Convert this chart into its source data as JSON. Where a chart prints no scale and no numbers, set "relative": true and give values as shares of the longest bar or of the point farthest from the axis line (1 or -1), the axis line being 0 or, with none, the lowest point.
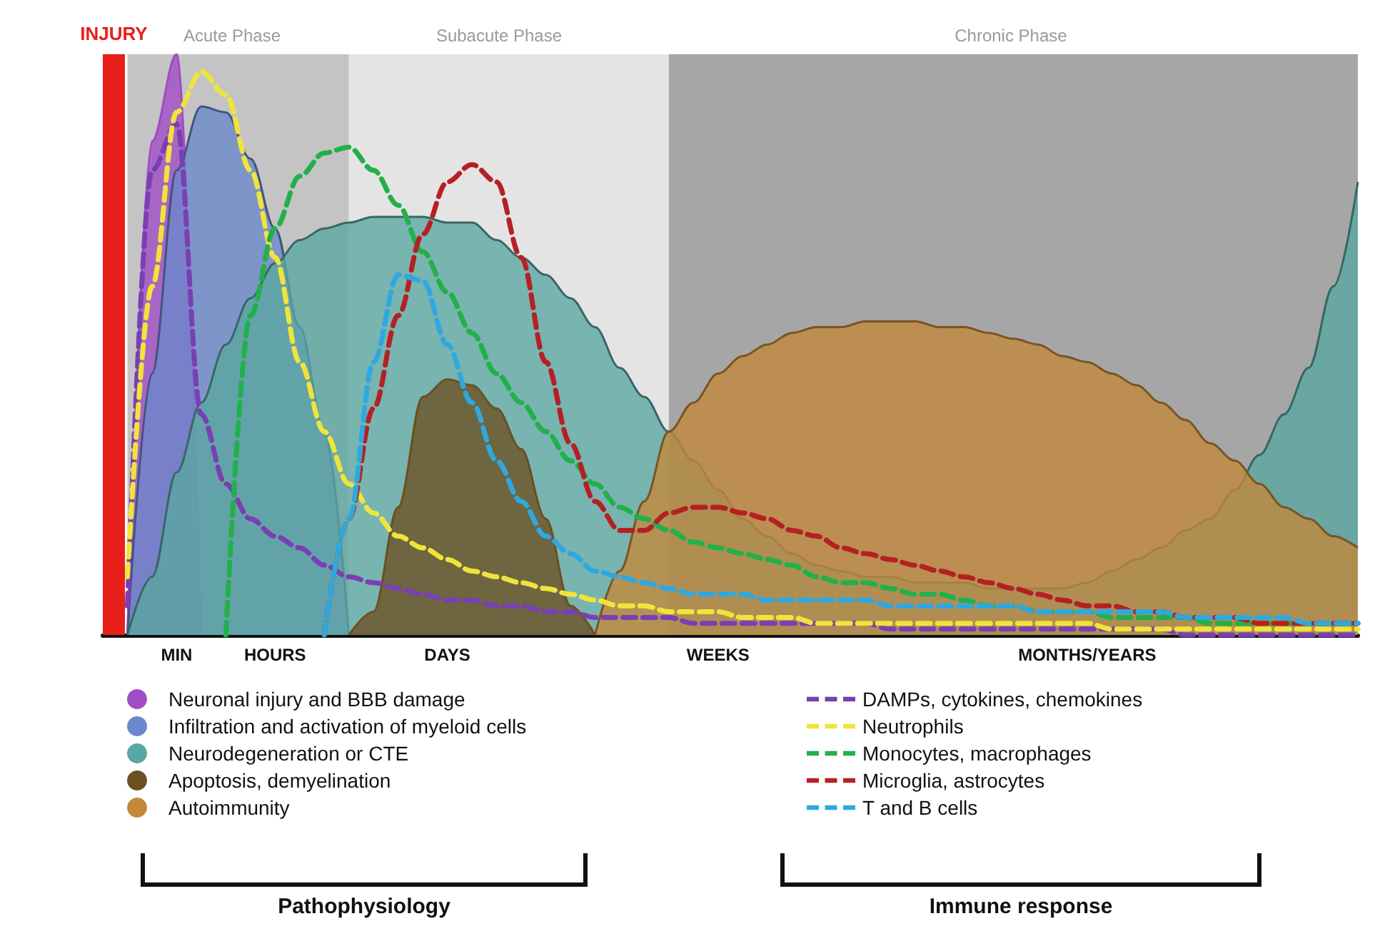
{
  "chart_data": {
    "type": "area",
    "relative": true,
    "legend": "bottom",
    "marker": "none",
    "line_style": "dashed",
    "categories": [
      null,
      null,
      null,
      "MIN",
      null,
      null,
      null,
      "HOURS",
      null,
      null,
      null,
      null,
      null,
      null,
      "DAYS",
      null,
      null,
      null,
      null,
      null,
      null,
      null,
      null,
      null,
      null,
      "WEEKS",
      null,
      null,
      null,
      null,
      null,
      null,
      null,
      null,
      null,
      null,
      null,
      null,
      null,
      null,
      "MONTHS/YEARS",
      null,
      null,
      null,
      null,
      null,
      null,
      null,
      null,
      null,
      null,
      null
    ],
    "annotations": [
      "INJURY",
      "Acute Phase",
      "Subacute Phase",
      "Chronic Phase",
      "Pathophysiology",
      "Immune response"
    ],
    "series": [
      {
        "name": "Neuronal injury and BBB damage",
        "color": "#a04cc4",
        "values": [
          null,
          0,
          0.85,
          1.0,
          0,
          null,
          null,
          null,
          null,
          null,
          null,
          null,
          null,
          null,
          null,
          null,
          null,
          null,
          null,
          null,
          null,
          null,
          null,
          null,
          null,
          null,
          null,
          null,
          null,
          null,
          null,
          null,
          null,
          null,
          null,
          null,
          null,
          null,
          null,
          null,
          null,
          null,
          null,
          null,
          null,
          null,
          null,
          null,
          null,
          null,
          null,
          null
        ]
      },
      {
        "name": "Infiltration and activation of myeloid cells",
        "color": "#6a88cc",
        "values": [
          null,
          0,
          0.45,
          0.8,
          0.91,
          0.9,
          0.82,
          0.7,
          0.53,
          0.35,
          0,
          null,
          null,
          null,
          null,
          null,
          null,
          null,
          null,
          null,
          null,
          null,
          null,
          null,
          null,
          null,
          null,
          null,
          null,
          null,
          null,
          null,
          null,
          null,
          null,
          null,
          null,
          null,
          null,
          null,
          null,
          null,
          null,
          null,
          null,
          null,
          null,
          null,
          null,
          null,
          null,
          null
        ]
      },
      {
        "name": "Neurodegeneration or CTE",
        "color": "#5aa6a2",
        "values": [
          null,
          0,
          0.1,
          0.28,
          0.4,
          0.5,
          0.58,
          0.64,
          0.68,
          0.7,
          0.71,
          0.72,
          0.72,
          0.72,
          0.71,
          0.71,
          0.68,
          0.65,
          0.62,
          0.58,
          0.53,
          0.46,
          0.41,
          0.35,
          0.3,
          0.25,
          0.2,
          0.17,
          0.14,
          0.12,
          0.11,
          0.1,
          0.1,
          0.09,
          0.09,
          0.09,
          0.08,
          0.08,
          0.08,
          0.08,
          0.09,
          0.11,
          0.13,
          0.15,
          0.18,
          0.2,
          0.25,
          0.31,
          0.38,
          0.46,
          0.6,
          0.78
        ]
      },
      {
        "name": "Apoptosis, demyelination",
        "color": "#6b5020",
        "values": [
          null,
          null,
          null,
          null,
          null,
          null,
          null,
          null,
          null,
          null,
          0,
          0.04,
          0.22,
          0.41,
          0.44,
          0.43,
          0.39,
          0.32,
          0.2,
          0.05,
          0,
          null,
          null,
          null,
          null,
          null,
          null,
          null,
          null,
          null,
          null,
          null,
          null,
          null,
          null,
          null,
          null,
          null,
          null,
          null,
          null,
          null,
          null,
          null,
          null,
          null,
          null,
          null,
          null,
          null,
          null,
          null
        ]
      },
      {
        "name": "Autoimmunity",
        "color": "#c4883a",
        "values": [
          null,
          null,
          null,
          null,
          null,
          null,
          null,
          null,
          null,
          null,
          null,
          null,
          null,
          null,
          null,
          null,
          null,
          null,
          null,
          null,
          0,
          0.11,
          0.23,
          0.35,
          0.4,
          0.45,
          0.48,
          0.5,
          0.52,
          0.53,
          0.53,
          0.54,
          0.54,
          0.54,
          0.53,
          0.53,
          0.52,
          0.51,
          0.5,
          0.48,
          0.47,
          0.45,
          0.43,
          0.4,
          0.37,
          0.33,
          0.3,
          0.26,
          0.22,
          0.2,
          0.17,
          0.15
        ]
      },
      {
        "name": "DAMPs, cytokines, chemokines",
        "type": "line",
        "color": "#7a3fb2",
        "values": [
          null,
          0.05,
          0.8,
          0.88,
          0.38,
          0.26,
          0.2,
          0.17,
          0.15,
          0.12,
          0.1,
          0.09,
          0.08,
          0.07,
          0.06,
          0.06,
          0.05,
          0.05,
          0.04,
          0.04,
          0.03,
          0.03,
          0.03,
          0.03,
          0.02,
          0.02,
          0.02,
          0.02,
          0.02,
          0.02,
          0.02,
          0.02,
          0.01,
          0.01,
          0.01,
          0.01,
          0.01,
          0.01,
          0.01,
          0.01,
          0.01,
          0.01,
          0.01,
          0.01,
          0,
          0,
          0,
          0,
          0,
          0,
          0,
          0
        ]
      },
      {
        "name": "Neutrophils",
        "type": "line",
        "color": "#f0e43c",
        "values": [
          null,
          0.1,
          0.6,
          0.9,
          0.97,
          0.93,
          0.8,
          0.65,
          0.47,
          0.35,
          0.26,
          0.21,
          0.17,
          0.15,
          0.13,
          0.11,
          0.1,
          0.09,
          0.08,
          0.07,
          0.06,
          0.05,
          0.05,
          0.04,
          0.04,
          0.04,
          0.03,
          0.03,
          0.03,
          0.02,
          0.02,
          0.02,
          0.02,
          0.02,
          0.02,
          0.02,
          0.02,
          0.02,
          0.02,
          0.02,
          0.02,
          0.01,
          0.01,
          0.01,
          0.01,
          0.01,
          0.01,
          0.01,
          0.01,
          0.01,
          0.01,
          0.01
        ]
      },
      {
        "name": "Monocytes, macrophages",
        "type": "line",
        "color": "#22b04a",
        "values": [
          null,
          null,
          null,
          null,
          null,
          0,
          0.55,
          0.7,
          0.79,
          0.83,
          0.84,
          0.8,
          0.74,
          0.66,
          0.59,
          0.52,
          0.45,
          0.4,
          0.35,
          0.3,
          0.26,
          0.22,
          0.2,
          0.18,
          0.16,
          0.15,
          0.14,
          0.13,
          0.12,
          0.1,
          0.09,
          0.09,
          0.08,
          0.07,
          0.07,
          0.06,
          0.05,
          0.05,
          0.04,
          0.04,
          0.04,
          0.03,
          0.03,
          0.03,
          0.03,
          0.02,
          0.02,
          0.02,
          0.02,
          0.02,
          0.02,
          0.02
        ]
      },
      {
        "name": "Microglia, astrocytes",
        "type": "line",
        "color": "#b52025",
        "values": [
          null,
          null,
          null,
          null,
          null,
          null,
          null,
          null,
          null,
          0,
          0.2,
          0.39,
          0.55,
          0.69,
          0.78,
          0.81,
          0.78,
          0.65,
          0.47,
          0.33,
          0.23,
          0.18,
          0.18,
          0.21,
          0.22,
          0.22,
          0.21,
          0.2,
          0.18,
          0.17,
          0.15,
          0.14,
          0.13,
          0.12,
          0.11,
          0.1,
          0.09,
          0.08,
          0.07,
          0.06,
          0.05,
          0.05,
          0.04,
          0.04,
          0.03,
          0.03,
          0.03,
          0.02,
          0.02,
          0.02,
          0.02,
          0.02
        ]
      },
      {
        "name": "T and B cells",
        "type": "line",
        "color": "#2fa8e0",
        "values": [
          null,
          null,
          null,
          null,
          null,
          null,
          null,
          null,
          null,
          0,
          0.2,
          0.47,
          0.62,
          0.61,
          0.5,
          0.4,
          0.3,
          0.23,
          0.17,
          0.14,
          0.11,
          0.1,
          0.09,
          0.08,
          0.07,
          0.07,
          0.07,
          0.06,
          0.06,
          0.06,
          0.06,
          0.06,
          0.05,
          0.05,
          0.05,
          0.05,
          0.05,
          0.05,
          0.04,
          0.04,
          0.04,
          0.04,
          0.04,
          0.04,
          0.03,
          0.03,
          0.03,
          0.03,
          0.03,
          0.02,
          0.02,
          0.02
        ]
      }
    ]
  }
}
